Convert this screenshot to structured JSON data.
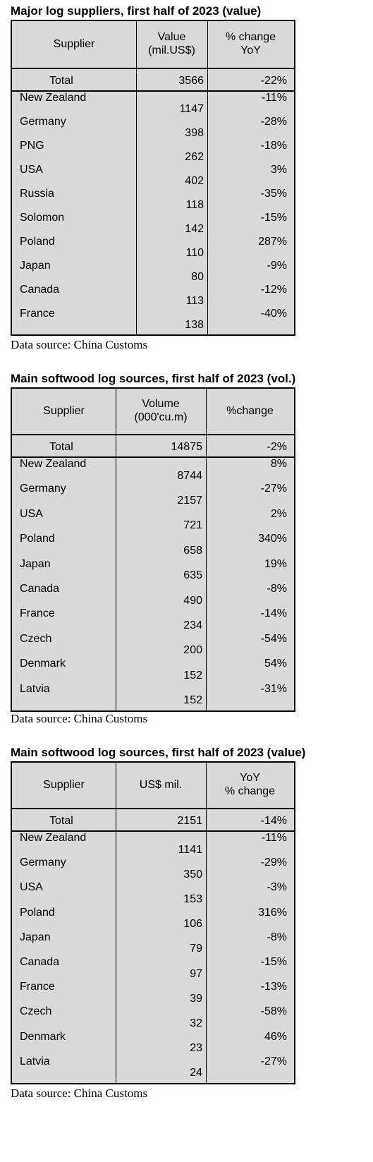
{
  "tables": [
    {
      "title": "Major log suppliers, first half of 2023 (value)",
      "headers": [
        "Supplier",
        "Value\n(mil.US$)",
        "% change\nYoY"
      ],
      "total": {
        "label": "Total",
        "value": "3566",
        "change": "-22%"
      },
      "rows": [
        {
          "supplier": "New Zealand",
          "value": "1147",
          "change": "-11%"
        },
        {
          "supplier": "Germany",
          "value": "398",
          "change": "-28%"
        },
        {
          "supplier": "PNG",
          "value": "262",
          "change": "-18%"
        },
        {
          "supplier": "USA",
          "value": "402",
          "change": "3%"
        },
        {
          "supplier": "Russia",
          "value": "118",
          "change": "-35%"
        },
        {
          "supplier": "Solomon",
          "value": "142",
          "change": "-15%"
        },
        {
          "supplier": "Poland",
          "value": "110",
          "change": "287%"
        },
        {
          "supplier": "Japan",
          "value": "80",
          "change": "-9%"
        },
        {
          "supplier": "Canada",
          "value": "113",
          "change": "-12%"
        },
        {
          "supplier": "France",
          "value": "138",
          "change": "-40%"
        }
      ],
      "source": "Data source: China Customs"
    },
    {
      "title": "Main softwood log sources, first half of 2023 (vol.)",
      "headers": [
        "Supplier",
        "Volume\n(000'cu.m)",
        "%change"
      ],
      "total": {
        "label": "Total",
        "value": "14875",
        "change": "-2%"
      },
      "rows": [
        {
          "supplier": "New Zealand",
          "value": "8744",
          "change": "8%"
        },
        {
          "supplier": "Germany",
          "value": "2157",
          "change": "-27%"
        },
        {
          "supplier": "USA",
          "value": "721",
          "change": "2%"
        },
        {
          "supplier": "Poland",
          "value": "658",
          "change": "340%"
        },
        {
          "supplier": "Japan",
          "value": "635",
          "change": "19%"
        },
        {
          "supplier": "Canada",
          "value": "490",
          "change": "-8%"
        },
        {
          "supplier": "France",
          "value": "234",
          "change": "-14%"
        },
        {
          "supplier": "Czech",
          "value": "200",
          "change": "-54%"
        },
        {
          "supplier": "Denmark",
          "value": "152",
          "change": "54%"
        },
        {
          "supplier": "Latvia",
          "value": "152",
          "change": "-31%"
        }
      ],
      "source": "Data source: China Customs"
    },
    {
      "title": "Main softwood log sources, first half of 2023 (value)",
      "headers": [
        "Supplier",
        "US$ mil.",
        "YoY\n% change"
      ],
      "total": {
        "label": "Total",
        "value": "2151",
        "change": "-14%"
      },
      "rows": [
        {
          "supplier": "New Zealand",
          "value": "1141",
          "change": "-11%"
        },
        {
          "supplier": "Germany",
          "value": "350",
          "change": "-29%"
        },
        {
          "supplier": "USA",
          "value": "153",
          "change": "-3%"
        },
        {
          "supplier": "Poland",
          "value": "106",
          "change": "316%"
        },
        {
          "supplier": "Japan",
          "value": "79",
          "change": "-8%"
        },
        {
          "supplier": "Canada",
          "value": "97",
          "change": "-15%"
        },
        {
          "supplier": "France",
          "value": "39",
          "change": "-13%"
        },
        {
          "supplier": "Czech",
          "value": "32",
          "change": "-58%"
        },
        {
          "supplier": "Denmark",
          "value": "23",
          "change": "46%"
        },
        {
          "supplier": "Latvia",
          "value": "24",
          "change": "-27%"
        }
      ],
      "source": "Data source: China Customs"
    }
  ]
}
